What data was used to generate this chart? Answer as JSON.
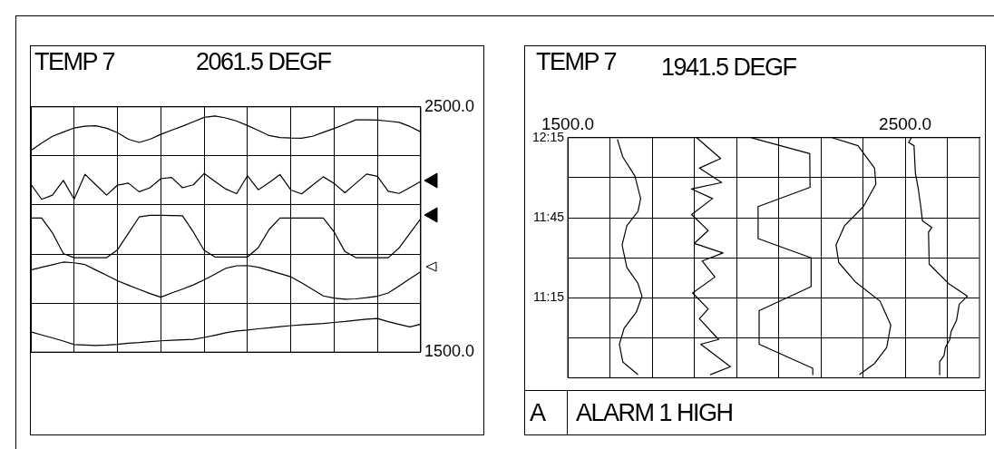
{
  "chart_data": [
    {
      "type": "line",
      "title": "TEMP 7",
      "annotations": [
        "2061.5 DEGF"
      ],
      "grid": true,
      "legend": false,
      "marker": "none",
      "categories": [
        null,
        null,
        null,
        null,
        null,
        null,
        null,
        null,
        null,
        null,
        null,
        null,
        null,
        null,
        null,
        null,
        null,
        null,
        null,
        null,
        null,
        null,
        null,
        null,
        null,
        null,
        null,
        null,
        null,
        null,
        null,
        null,
        null,
        null,
        null,
        null,
        null
      ],
      "ylim": [
        1500,
        2500
      ],
      "yticks": [
        {
          "value": 1500,
          "label": "1500.0"
        },
        {
          "value": 1700,
          "label": null
        },
        {
          "value": 1900,
          "label": null
        },
        {
          "value": 2100,
          "label": null
        },
        {
          "value": 2300,
          "label": null
        },
        {
          "value": 2500,
          "label": "2500.0"
        }
      ],
      "series": [
        {
          "color": "#000000",
          "values": [
            2322,
            2352,
            2380,
            2397,
            2414,
            2421,
            2423,
            2413,
            2395,
            2368,
            2355,
            2368,
            2388,
            2405,
            2421,
            2439,
            2457,
            2463,
            2455,
            2442,
            2424,
            2404,
            2383,
            2375,
            2373,
            2372,
            2380,
            2396,
            2412,
            2429,
            2447,
            2447,
            2446,
            2442,
            2437,
            2420,
            2398
          ]
        },
        {
          "color": "#000000",
          "values": [
            2185,
            2123,
            2140,
            2200,
            2124,
            2225,
            2182,
            2140,
            2181,
            2189,
            2154,
            2170,
            2207,
            2212,
            2170,
            2182,
            2228,
            2196,
            2165,
            2146,
            2219,
            2162,
            2191,
            2224,
            2161,
            2145,
            2180,
            2215,
            2188,
            2150,
            2188,
            2226,
            2217,
            2156,
            2147,
            2171,
            2196
          ]
        },
        {
          "color": "#000000",
          "values": [
            2047,
            2047,
            1986,
            1902,
            1885,
            1885,
            1885,
            1885,
            1917,
            1984,
            2051,
            2058,
            2058,
            2057,
            2056,
            1990,
            1915,
            1888,
            1888,
            1888,
            1888,
            1926,
            2000,
            2047,
            2047,
            2047,
            2047,
            2047,
            1990,
            1910,
            1885,
            1885,
            1885,
            1885,
            1925,
            1985,
            2044
          ]
        },
        {
          "color": "#000000",
          "values": [
            1835,
            1846,
            1856,
            1867,
            1864,
            1857,
            1835,
            1813,
            1791,
            1773,
            1756,
            1739,
            1724,
            1741,
            1757,
            1774,
            1795,
            1818,
            1842,
            1852,
            1853,
            1846,
            1833,
            1820,
            1807,
            1783,
            1756,
            1729,
            1720,
            1716,
            1717,
            1722,
            1728,
            1741,
            1770,
            1799,
            1828
          ]
        },
        {
          "color": "#000000",
          "values": [
            1583,
            1570,
            1558,
            1545,
            1531,
            1529,
            1527,
            1529,
            1532,
            1536,
            1539,
            1543,
            1546,
            1548,
            1550,
            1552,
            1560,
            1569,
            1579,
            1586,
            1590,
            1595,
            1599,
            1604,
            1608,
            1611,
            1614,
            1617,
            1621,
            1625,
            1630,
            1634,
            1637,
            1624,
            1613,
            1603,
            1614
          ]
        }
      ]
    },
    {
      "type": "line",
      "title": "TEMP 7",
      "annotations": [
        "1941.5 DEGF",
        "A",
        "ALARM 1 HIGH"
      ],
      "grid": true,
      "legend": false,
      "marker": "none",
      "xlim": [
        1500,
        2720
      ],
      "xticks": [
        {
          "value": 1500,
          "label": "1500.0"
        },
        {
          "value": 1625,
          "label": null
        },
        {
          "value": 1750,
          "label": null
        },
        {
          "value": 1875,
          "label": null
        },
        {
          "value": 2000,
          "label": null
        },
        {
          "value": 2125,
          "label": null
        },
        {
          "value": 2250,
          "label": null
        },
        {
          "value": 2375,
          "label": null
        },
        {
          "value": 2500,
          "label": "2500.0"
        },
        {
          "value": 2625,
          "label": null
        }
      ],
      "ylim": [
        10.75,
        12.25
      ],
      "yticks": [
        {
          "value": 10.75,
          "label": null
        },
        {
          "value": 11,
          "label": null
        },
        {
          "value": 11.25,
          "label": "11:15"
        },
        {
          "value": 11.5,
          "label": null
        },
        {
          "value": 11.75,
          "label": "11:45"
        },
        {
          "value": 12,
          "label": null
        },
        {
          "value": 12.25,
          "label": "12:15"
        }
      ],
      "series": [
        {
          "color": "#000000",
          "x": [
            1647,
            1663,
            1699,
            1716,
            1708,
            1675,
            1661,
            1675,
            1708,
            1720,
            1703,
            1667,
            1653,
            1663,
            1708
          ],
          "values": [
            12.24,
            12.13,
            12.01,
            11.87,
            11.79,
            11.7,
            11.58,
            11.44,
            11.34,
            11.26,
            11.16,
            11.06,
            10.96,
            10.85,
            10.77
          ]
        },
        {
          "color": "#000000",
          "x": [
            1882,
            1953,
            1890,
            1956,
            1866,
            1929,
            1867,
            1916,
            1875,
            1960,
            1898,
            1936,
            1870,
            1916,
            1890,
            1947,
            1894,
            1982,
            1922
          ],
          "values": [
            12.25,
            12.12,
            12.06,
            11.97,
            11.93,
            11.87,
            11.77,
            11.67,
            11.59,
            11.53,
            11.48,
            11.38,
            11.28,
            11.18,
            11.12,
            10.99,
            10.96,
            10.82,
            10.77
          ]
        },
        {
          "color": "#000000",
          "x": [
            2044,
            2217,
            2218,
            2064,
            2064,
            2221,
            2221,
            2067,
            2067,
            2226,
            2226
          ],
          "values": [
            12.25,
            12.15,
            11.94,
            11.82,
            11.62,
            11.5,
            11.32,
            11.17,
            10.96,
            10.81,
            10.77
          ]
        },
        {
          "color": "#000000",
          "x": [
            2283,
            2360,
            2409,
            2413,
            2376,
            2320,
            2295,
            2303,
            2352,
            2425,
            2457,
            2445,
            2409,
            2364
          ],
          "values": [
            12.25,
            12.2,
            12.06,
            11.96,
            11.82,
            11.7,
            11.58,
            11.47,
            11.35,
            11.23,
            11.08,
            10.94,
            10.84,
            10.77
          ]
        },
        {
          "color": "#000000",
          "x": [
            2518,
            2510,
            2526,
            2530,
            2538,
            2546,
            2551,
            2579,
            2569,
            2571,
            2628,
            2684,
            2660,
            2652,
            2636,
            2632,
            2619,
            2615,
            2602,
            2602
          ],
          "values": [
            12.25,
            12.22,
            12.2,
            12.03,
            11.94,
            11.82,
            11.73,
            11.69,
            11.66,
            11.46,
            11.34,
            11.26,
            11.21,
            11.11,
            11.04,
            10.99,
            10.94,
            10.89,
            10.85,
            10.77
          ]
        }
      ]
    }
  ]
}
